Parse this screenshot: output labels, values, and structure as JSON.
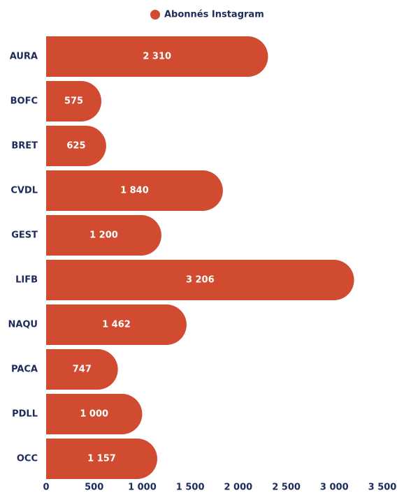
{
  "chart_data": {
    "type": "bar",
    "orientation": "horizontal",
    "categories": [
      "AURA",
      "BOFC",
      "BRET",
      "CVDL",
      "GEST",
      "LIFB",
      "NAQU",
      "PACA",
      "PDLL",
      "OCC"
    ],
    "series": [
      {
        "name": "Abonnés Instagram",
        "color": "#d14b31",
        "values": [
          2310,
          575,
          625,
          1840,
          1200,
          3206,
          1462,
          747,
          1000,
          1157
        ],
        "value_labels": [
          "2 310",
          "575",
          "625",
          "1 840",
          "1 200",
          "3 206",
          "1 462",
          "747",
          "1 000",
          "1 157"
        ]
      }
    ],
    "xlim": [
      0,
      3500
    ],
    "xticks": [
      0,
      500,
      {
        "value": 1000,
        "label": "1 000"
      },
      {
        "value": 1500,
        "label": "1 500"
      },
      {
        "value": 2000,
        "label": "2 000"
      },
      {
        "value": 2500,
        "label": "2 500"
      },
      {
        "value": 3000,
        "label": "3 000"
      },
      {
        "value": 3500,
        "label": "3 500"
      }
    ],
    "legend": "top",
    "grid": false
  }
}
